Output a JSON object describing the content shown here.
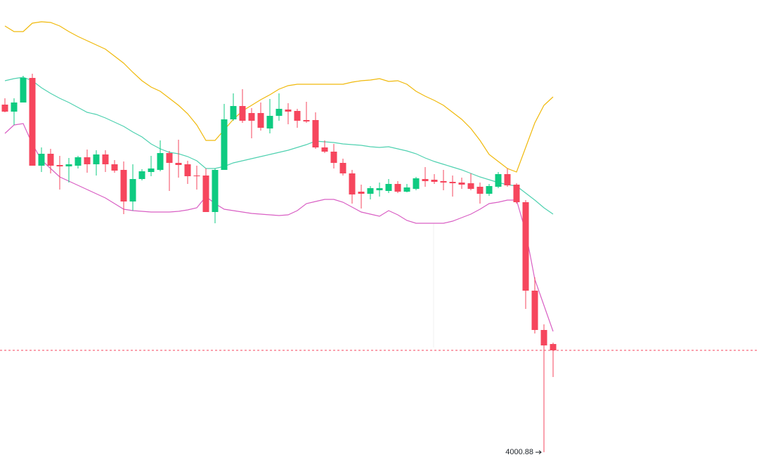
{
  "chart_data": {
    "type": "candlestick",
    "up_color": "#0ecb81",
    "down_color": "#f6465d",
    "ylim": [
      3967,
      4645
    ],
    "open": [
      4496,
      4486,
      4499,
      4534,
      4409,
      4426,
      4410,
      4408,
      4409,
      4421,
      4411,
      4425,
      4411,
      4403,
      4358,
      4390,
      4400,
      4403,
      4427,
      4413,
      4411,
      4395,
      4395,
      4343,
      4403,
      4475,
      4494,
      4484,
      4484,
      4462,
      4480,
      4489,
      4487,
      4474,
      4474,
      4435,
      4429,
      4413,
      4398,
      4372,
      4369,
      4374,
      4373,
      4383,
      4372,
      4376,
      4390,
      4389,
      4387,
      4386,
      4385,
      4384,
      4379,
      4369,
      4379,
      4397,
      4382,
      4357,
      4231,
      4175,
      4155
    ],
    "high": [
      4505,
      4505,
      4537,
      4540,
      4435,
      4433,
      4423,
      4420,
      4423,
      4432,
      4431,
      4431,
      4417,
      4415,
      4411,
      4404,
      4423,
      4445,
      4430,
      4446,
      4416,
      4409,
      4405,
      4405,
      4497,
      4512,
      4518,
      4491,
      4499,
      4504,
      4512,
      4498,
      4490,
      4500,
      4485,
      4445,
      4440,
      4419,
      4403,
      4382,
      4380,
      4385,
      4390,
      4387,
      4383,
      4393,
      4407,
      4397,
      4403,
      4395,
      4392,
      4398,
      4385,
      4383,
      4400,
      4405,
      4384,
      4360,
      4250,
      4183,
      4157
    ],
    "low": [
      4485,
      4467,
      4499,
      4409,
      4400,
      4398,
      4375,
      4385,
      4405,
      4399,
      4395,
      4400,
      4399,
      4340,
      4345,
      4388,
      4394,
      4401,
      4373,
      4392,
      4383,
      4375,
      4343,
      4327,
      4403,
      4473,
      4470,
      4448,
      4459,
      4455,
      4473,
      4468,
      4463,
      4470,
      4433,
      4427,
      4405,
      4395,
      4355,
      4348,
      4361,
      4365,
      4370,
      4370,
      4371,
      4374,
      4379,
      4383,
      4374,
      4365,
      4376,
      4374,
      4355,
      4366,
      4377,
      4379,
      4355,
      4205,
      4170,
      4000.88,
      4108
    ],
    "close": [
      4486,
      4499,
      4534,
      4409,
      4426,
      4409,
      4408,
      4411,
      4421,
      4411,
      4425,
      4411,
      4402,
      4358,
      4390,
      4401,
      4405,
      4427,
      4413,
      4410,
      4394,
      4394,
      4343,
      4403,
      4475,
      4494,
      4473,
      4473,
      4463,
      4480,
      4490,
      4486,
      4473,
      4472,
      4435,
      4429,
      4413,
      4398,
      4368,
      4369,
      4377,
      4377,
      4383,
      4372,
      4378,
      4391,
      4387,
      4386,
      4385,
      4384,
      4382,
      4376,
      4369,
      4380,
      4397,
      4381,
      4357,
      4231,
      4175,
      4153,
      4146
    ],
    "bands": [
      {
        "color": "#f0b90b",
        "values": [
          4608,
          4600,
          4600,
          4612,
          4614,
          4613,
          4608,
          4600,
          4593,
          4587,
          4581,
          4575,
          4565,
          4555,
          4542,
          4530,
          4521,
          4515,
          4505,
          4495,
          4483,
          4467,
          4445,
          4445,
          4460,
          4475,
          4487,
          4495,
          4503,
          4510,
          4518,
          4523,
          4525,
          4525,
          4525,
          4525,
          4525,
          4525,
          4528,
          4530,
          4531,
          4533,
          4529,
          4530,
          4525,
          4515,
          4508,
          4502,
          4495,
          4485,
          4475,
          4462,
          4445,
          4425,
          4415,
          4405,
          4400,
          4435,
          4470,
          4495,
          4507
        ]
      },
      {
        "color": "#4fd1b0",
        "values": [
          4530,
          4533,
          4535,
          4530,
          4520,
          4512,
          4505,
          4499,
          4492,
          4485,
          4482,
          4477,
          4471,
          4465,
          4457,
          4450,
          4440,
          4433,
          4428,
          4426,
          4422,
          4416,
          4405,
          4405,
          4408,
          4413,
          4416,
          4419,
          4422,
          4425,
          4428,
          4431,
          4435,
          4439,
          4444,
          4443,
          4442,
          4440,
          4439,
          4438,
          4436,
          4435,
          4436,
          4433,
          4430,
          4426,
          4420,
          4415,
          4411,
          4407,
          4403,
          4398,
          4393,
          4389,
          4385,
          4382,
          4380,
          4370,
          4360,
          4349,
          4340
        ]
      },
      {
        "color": "#d95fc4",
        "values": [
          4455,
          4467,
          4469,
          4440,
          4417,
          4405,
          4393,
          4387,
          4381,
          4375,
          4369,
          4363,
          4355,
          4347,
          4345,
          4344,
          4343,
          4343,
          4343,
          4344,
          4346,
          4349,
          4365,
          4355,
          4347,
          4345,
          4343,
          4341,
          4340,
          4339,
          4338,
          4339,
          4345,
          4355,
          4358,
          4361,
          4361,
          4357,
          4350,
          4343,
          4340,
          4337,
          4345,
          4339,
          4331,
          4327,
          4327,
          4327,
          4327,
          4330,
          4335,
          4340,
          4347,
          4355,
          4357,
          4360,
          4360,
          4315,
          4247,
          4210,
          4173
        ]
      }
    ]
  }
}
